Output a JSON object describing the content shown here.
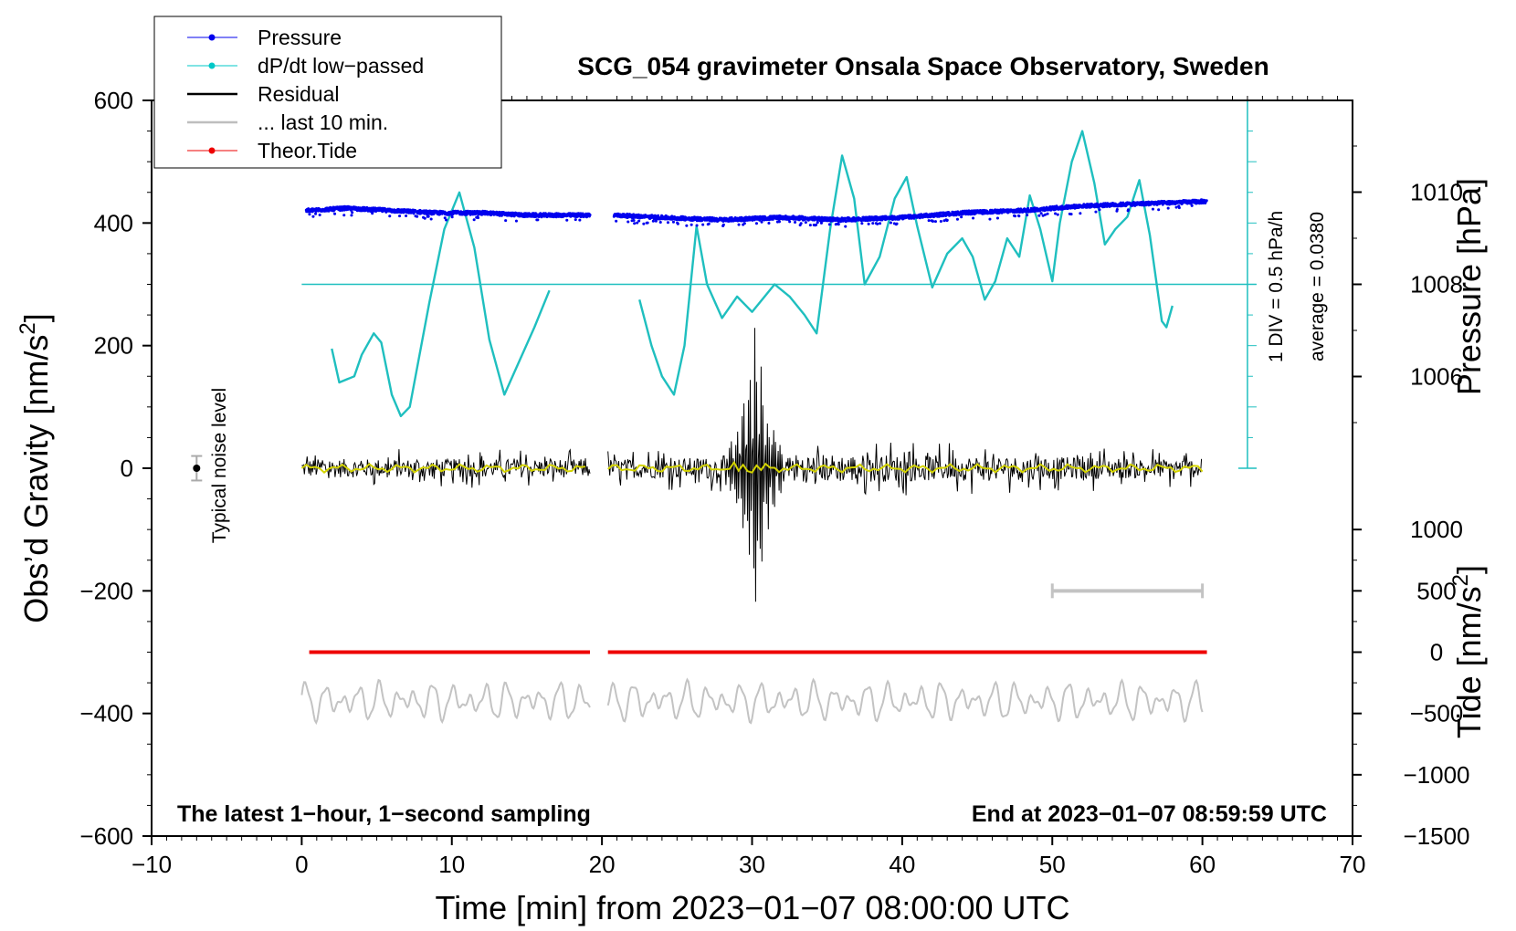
{
  "chart_data": {
    "type": "line",
    "title": "SCG_054 gravimeter Onsala Space Observatory, Sweden",
    "xlabel": "Time [min] from 2023−01−07 08:00:00 UTC",
    "ylabel": "Obs’d Gravity [nm/s",
    "ylabel_sup": "2",
    "ylabel_end": "]",
    "right_label_top": "Pressure [hPa]",
    "right_label_bottom": "Tide [nm/s",
    "right_label_bottom_sup": "2",
    "right_label_bottom_end": "]",
    "xlim": [
      -10,
      70
    ],
    "ylim": [
      -600,
      600
    ],
    "x_ticks": [
      -10,
      0,
      10,
      20,
      30,
      40,
      50,
      60,
      70
    ],
    "x_tick_labels": [
      "−10",
      "0",
      "10",
      "20",
      "30",
      "40",
      "50",
      "60",
      "70"
    ],
    "y_ticks": [
      600,
      400,
      200,
      0,
      -200,
      -400,
      -600
    ],
    "y_tick_labels": [
      "600",
      "400",
      "200",
      "0",
      "−200",
      "−400",
      "−600"
    ],
    "pressure_ticks": [
      1010,
      1008,
      1006
    ],
    "pressure_tick_labels": [
      "1010",
      "1008",
      "1006"
    ],
    "pressure_scale": {
      "value_at_y300": 1008,
      "hpa_per_100nm": 1.33
    },
    "tide_ticks": [
      1000,
      500,
      0,
      -500,
      -1000,
      -1500
    ],
    "tide_tick_labels": [
      "1000",
      "500",
      "0",
      "−500",
      "−1000",
      "−1500"
    ],
    "tide_scale": {
      "zero_at_y": -300,
      "units_per_100nm": 500
    },
    "dpdt_scale_label": "1 DIV = 0.5 hPa/h",
    "dpdt_average_label": "average = 0.0380",
    "noise_label": "Typical noise level",
    "noise_marker": {
      "x": -7,
      "y": 0,
      "err": 20
    },
    "footer_left": "The latest 1−hour, 1−second sampling",
    "footer_right": "End at 2023−01−07 08:59:59 UTC",
    "last10_bar": {
      "x0": 50,
      "x1": 60,
      "y": -200
    },
    "dpdt_baseline_y": 300,
    "gap": [
      19.2,
      20.4
    ],
    "legend": [
      {
        "label": "Pressure",
        "color": "#0000ee",
        "marker": true
      },
      {
        "label": "dP/dt low−passed",
        "color": "#00c8c8",
        "marker": true
      },
      {
        "label": "Residual",
        "color": "#000000",
        "marker": false
      },
      {
        "label": "... last 10 min.",
        "color": "#bebebe",
        "marker": false
      },
      {
        "label": "Theor.Tide",
        "color": "#ee0000",
        "marker": true
      }
    ],
    "series": [
      {
        "name": "Pressure",
        "units": "hPa",
        "color": "#0000ee",
        "x": [
          0.3,
          3,
          6,
          9,
          12,
          15,
          19,
          20.8,
          24,
          28,
          32,
          36,
          40,
          44,
          48,
          52,
          56,
          60.3
        ],
        "values": [
          1009.6,
          1009.65,
          1009.6,
          1009.55,
          1009.55,
          1009.5,
          1009.5,
          1009.5,
          1009.45,
          1009.4,
          1009.45,
          1009.4,
          1009.45,
          1009.55,
          1009.6,
          1009.7,
          1009.75,
          1009.8
        ]
      },
      {
        "name": "dP/dt low-passed",
        "units": "nm/s2 plot units",
        "color": "#00c8c8",
        "x": [
          2,
          2.5,
          3.5,
          4,
          4.8,
          5.3,
          6,
          6.6,
          7.2,
          8.5,
          9.5,
          10.5,
          11.5,
          12.5,
          13.5,
          14.5,
          15.5,
          16.5,
          22.5,
          23.3,
          24,
          24.8,
          25.5,
          26.3,
          27,
          28,
          29,
          30,
          31.5,
          32.5,
          33.5,
          34.3,
          35.2,
          36,
          36.8,
          37.5,
          38.5,
          39.5,
          40.3,
          41,
          42,
          43,
          44,
          44.7,
          45.5,
          46.2,
          47,
          47.8,
          48.5,
          49.2,
          50,
          50.5,
          51.3,
          52,
          52.8,
          53.5,
          54.2,
          55,
          55.8,
          56.5,
          57.3,
          57.6,
          58
        ],
        "values": [
          195,
          140,
          150,
          185,
          220,
          205,
          120,
          85,
          100,
          270,
          390,
          450,
          360,
          210,
          120,
          175,
          230,
          290,
          275,
          200,
          150,
          120,
          200,
          395,
          300,
          245,
          280,
          255,
          300,
          280,
          250,
          220,
          390,
          510,
          440,
          300,
          345,
          440,
          475,
          395,
          295,
          350,
          375,
          345,
          275,
          305,
          375,
          345,
          445,
          390,
          305,
          400,
          500,
          550,
          465,
          365,
          390,
          410,
          470,
          380,
          240,
          230,
          265
        ]
      },
      {
        "name": "Residual",
        "units": "nm/s2",
        "color": "#000000",
        "x": [
          0,
          19.2,
          20.4,
          28,
          29,
          29.5,
          30,
          30.3,
          30.6,
          31,
          32,
          60
        ],
        "envelope": [
          25,
          25,
          25,
          30,
          70,
          145,
          210,
          270,
          200,
          110,
          40,
          25
        ]
      },
      {
        "name": "... last 10 min.",
        "units": "nm/s2",
        "color": "#bebebe",
        "x": [
          0,
          60
        ],
        "values": [
          -380,
          -380
        ],
        "amplitude": 30
      },
      {
        "name": "Theor.Tide",
        "units": "nm/s2",
        "color": "#ee0000",
        "x": [
          0.5,
          19.2,
          20.4,
          60.3
        ],
        "values": [
          0,
          0,
          0,
          0
        ]
      }
    ]
  }
}
